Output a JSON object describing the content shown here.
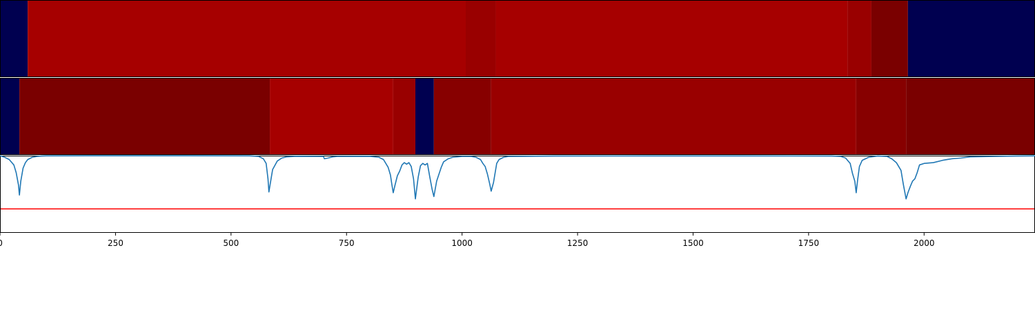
{
  "chart_data": {
    "type": "heatmap",
    "xlim": [
      0,
      2240
    ],
    "x_ticks": [
      0,
      250,
      500,
      750,
      1000,
      1250,
      1500,
      1750,
      2000
    ],
    "x_tick_labels": [
      "0",
      "250",
      "500",
      "750",
      "1000",
      "1250",
      "1500",
      "1750",
      "2000"
    ],
    "colors": {
      "navy": "#000050",
      "deep_maroon": "#7a0000",
      "dark_red": "#870000",
      "mid_red": "#990000",
      "red": "#a60000",
      "line": "#1f77b4",
      "threshold_line": "#ff0000"
    },
    "heatmap_rows": [
      {
        "segments": [
          {
            "x0": 0,
            "x1": 60,
            "color": "#000050"
          },
          {
            "x0": 60,
            "x1": 1008,
            "color": "#a60000"
          },
          {
            "x0": 1008,
            "x1": 1073,
            "color": "#990000"
          },
          {
            "x0": 1073,
            "x1": 1834,
            "color": "#a60000"
          },
          {
            "x0": 1834,
            "x1": 1886,
            "color": "#990000"
          },
          {
            "x0": 1886,
            "x1": 1965,
            "color": "#7a0000"
          },
          {
            "x0": 1965,
            "x1": 2240,
            "color": "#000050"
          }
        ]
      },
      {
        "segments": [
          {
            "x0": 0,
            "x1": 42,
            "color": "#000050"
          },
          {
            "x0": 42,
            "x1": 584,
            "color": "#7a0000"
          },
          {
            "x0": 584,
            "x1": 851,
            "color": "#a60000"
          },
          {
            "x0": 851,
            "x1": 899,
            "color": "#990000"
          },
          {
            "x0": 899,
            "x1": 939,
            "color": "#000050"
          },
          {
            "x0": 939,
            "x1": 1063,
            "color": "#870000"
          },
          {
            "x0": 1063,
            "x1": 1853,
            "color": "#990000"
          },
          {
            "x0": 1853,
            "x1": 1961,
            "color": "#870000"
          },
          {
            "x0": 1961,
            "x1": 2240,
            "color": "#7a0000"
          }
        ]
      }
    ],
    "signal": {
      "ylim": [
        -1.0,
        0.0
      ],
      "threshold": -0.69,
      "x": [
        0,
        10,
        20,
        30,
        35,
        40,
        42,
        45,
        50,
        55,
        60,
        70,
        80,
        90,
        100,
        200,
        300,
        400,
        540,
        560,
        570,
        576,
        580,
        582,
        585,
        590,
        600,
        610,
        620,
        640,
        700,
        702,
        710,
        720,
        730,
        800,
        820,
        830,
        840,
        845,
        848,
        851,
        855,
        860,
        865,
        870,
        875,
        880,
        885,
        890,
        895,
        899,
        905,
        910,
        915,
        920,
        925,
        930,
        935,
        939,
        945,
        950,
        955,
        960,
        970,
        980,
        1000,
        1020,
        1030,
        1040,
        1045,
        1050,
        1055,
        1060,
        1063,
        1068,
        1075,
        1080,
        1090,
        1100,
        1200,
        1400,
        1600,
        1800,
        1820,
        1830,
        1840,
        1845,
        1850,
        1853,
        1856,
        1860,
        1866,
        1880,
        1900,
        1920,
        1930,
        1940,
        1950,
        1955,
        1961,
        1965,
        1970,
        1975,
        1980,
        1985,
        1990,
        2000,
        2020,
        2040,
        2050,
        2060,
        2080,
        2100,
        2150,
        2200,
        2240
      ],
      "y": [
        0.0,
        -0.02,
        -0.05,
        -0.12,
        -0.22,
        -0.38,
        -0.51,
        -0.33,
        -0.16,
        -0.09,
        -0.05,
        -0.02,
        -0.01,
        -0.005,
        -0.003,
        -0.002,
        -0.002,
        -0.002,
        -0.003,
        -0.01,
        -0.04,
        -0.1,
        -0.3,
        -0.47,
        -0.36,
        -0.18,
        -0.07,
        -0.03,
        -0.015,
        -0.008,
        -0.01,
        -0.04,
        -0.03,
        -0.015,
        -0.01,
        -0.008,
        -0.02,
        -0.05,
        -0.15,
        -0.25,
        -0.37,
        -0.48,
        -0.38,
        -0.26,
        -0.2,
        -0.12,
        -0.09,
        -0.11,
        -0.09,
        -0.14,
        -0.3,
        -0.56,
        -0.28,
        -0.13,
        -0.1,
        -0.12,
        -0.1,
        -0.27,
        -0.43,
        -0.53,
        -0.33,
        -0.24,
        -0.15,
        -0.08,
        -0.04,
        -0.02,
        -0.01,
        -0.01,
        -0.02,
        -0.05,
        -0.1,
        -0.14,
        -0.24,
        -0.37,
        -0.46,
        -0.35,
        -0.1,
        -0.05,
        -0.02,
        -0.01,
        -0.005,
        -0.004,
        -0.004,
        -0.005,
        -0.01,
        -0.03,
        -0.1,
        -0.23,
        -0.33,
        -0.48,
        -0.32,
        -0.14,
        -0.06,
        -0.02,
        -0.005,
        -0.01,
        -0.04,
        -0.09,
        -0.19,
        -0.37,
        -0.56,
        -0.48,
        -0.4,
        -0.33,
        -0.3,
        -0.22,
        -0.12,
        -0.1,
        -0.09,
        -0.06,
        -0.05,
        -0.04,
        -0.03,
        -0.015,
        -0.01,
        -0.005,
        -0.003
      ]
    }
  }
}
